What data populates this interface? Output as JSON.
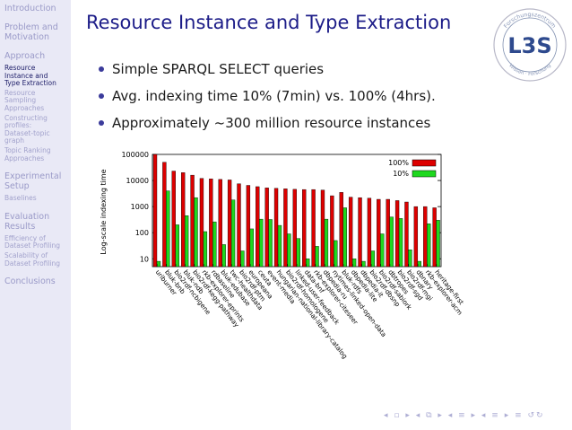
{
  "sidebar": {
    "sections": [
      {
        "label": "Introduction"
      },
      {
        "label": "Problem and\nMotivation"
      },
      {
        "label": "Approach",
        "items": [
          "Resource\nInstance and\nType Extraction",
          "Resource\nSampling\nApproaches",
          "Constructing\nprofiles:\nDataset-topic\ngraph",
          "Topic Ranking\nApproaches"
        ]
      },
      {
        "label": "Experimental\nSetup",
        "items": [
          "Baselines"
        ]
      },
      {
        "label": "Evaluation\nResults",
        "items": [
          "Efficiency of\nDataset Profiling",
          "Scalability of\nDataset Profiling"
        ]
      },
      {
        "label": "Conclusions"
      }
    ]
  },
  "slide": {
    "title": "Resource Instance and Type Extraction",
    "bullets": [
      "Simple SPARQL SELECT queries",
      "Avg. indexing time 10% (7min) vs. 100% (4hrs).",
      "Approximately ~300 million resource instances"
    ]
  },
  "logo": {
    "top_text": "Forschungszentrum",
    "bottom_text": "Wissen · Forschung",
    "mark": "L3S"
  },
  "colors": {
    "series_100": "#dd0000",
    "series_10": "#1ed81e",
    "title": "#1c1c88"
  },
  "chart_data": {
    "type": "bar",
    "ylabel": "Log-scale indexing time",
    "yscale": "log",
    "ylim": [
      5,
      100000
    ],
    "yticks": [
      "10",
      "100",
      "1000",
      "10000",
      "100000"
    ],
    "legend_position": "top-right",
    "categories": [
      "uriburner",
      "bluk-bnb",
      "bio2rdf-ncbigene",
      "bluk-ndb",
      "bio2rdf-kegg-pathway",
      "rkb-explorer-eprints",
      "rdbaseline",
      "bluk-edubase",
      "twc-healthdata",
      "bio2rdf-ptm",
      "europeana",
      "ceuta",
      "event-media",
      "hungarian-national-library-catalog",
      "bio2rdf-homologene",
      "linked-user-feedback",
      "data-bnf",
      "rkb-explorer-citeseer",
      "dbpedia-ru",
      "nytimes-linked-open-data",
      "bluk-rdfs",
      "dbpedia-lite",
      "dbpedia-it",
      "bio2rdf-dbsnp",
      "bio2rdf-sabiork",
      "dbtropes",
      "bio2rdf-sgd",
      "bio2rdf-mgi",
      "dbnary",
      "rkb-explorer-acm",
      "heritage-first"
    ],
    "series": [
      {
        "name": "100%",
        "values": [
          100000,
          50000,
          23000,
          20000,
          16000,
          12000,
          11500,
          11000,
          10500,
          7500,
          6500,
          5800,
          5200,
          5000,
          4800,
          4600,
          4500,
          4500,
          4300,
          2600,
          3500,
          2300,
          2200,
          2100,
          1900,
          1900,
          1700,
          1500,
          1000,
          1000,
          900
        ]
      },
      {
        "name": "10%",
        "values": [
          8,
          4000,
          200,
          450,
          2200,
          110,
          260,
          35,
          1800,
          20,
          140,
          330,
          320,
          190,
          90,
          60,
          10,
          30,
          330,
          50,
          900,
          10,
          8,
          20,
          90,
          400,
          350,
          22,
          8,
          220,
          300
        ]
      }
    ]
  }
}
